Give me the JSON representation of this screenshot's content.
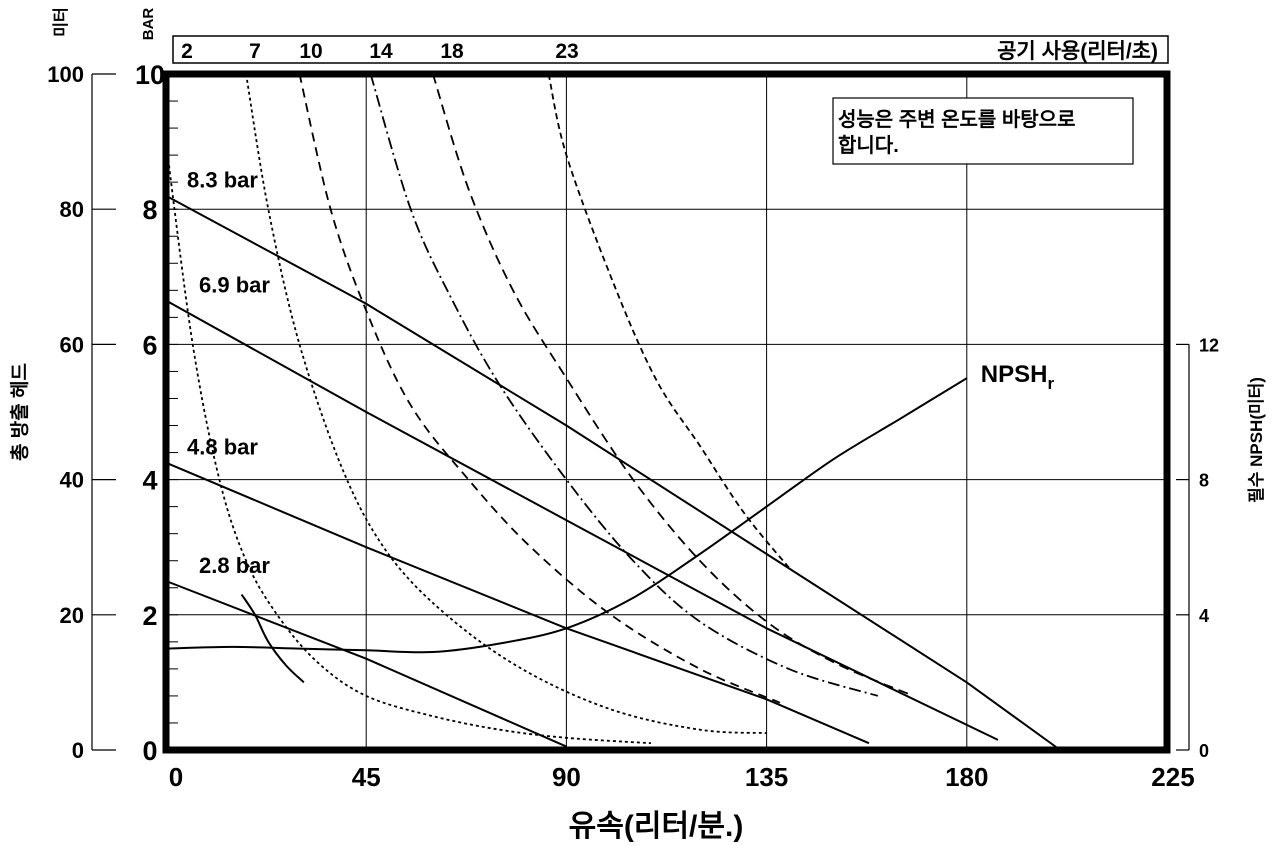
{
  "chart_data": {
    "type": "line",
    "x_axis": {
      "label": "유속(리터/분.)",
      "range": [
        0,
        225
      ],
      "ticks": [
        0,
        45,
        90,
        135,
        180,
        225
      ]
    },
    "y_axis_left_meters": {
      "unit_label": "미터",
      "label": "총 방출 헤드",
      "range": [
        0,
        100
      ],
      "ticks": [
        0,
        20,
        40,
        60,
        80,
        100
      ]
    },
    "y_axis_left_bar": {
      "unit_label": "BAR",
      "range": [
        0,
        10
      ],
      "ticks": [
        0,
        2,
        4,
        6,
        8,
        10
      ]
    },
    "y_axis_right_npsh": {
      "label": "필수 NPSH(미터)",
      "range": [
        0,
        20
      ],
      "ticks": [
        0,
        4,
        8,
        12
      ]
    },
    "air_consumption": {
      "label": "공기 사용(리터/초)",
      "values": [
        "2",
        "7",
        "10",
        "14",
        "18",
        "23"
      ]
    },
    "note": "성능은 주변 온도를 바탕으로 합니다.",
    "pressure_curves": [
      {
        "name": "8.3 bar",
        "points": [
          [
            0,
            82
          ],
          [
            45,
            66
          ],
          [
            90,
            48
          ],
          [
            135,
            29
          ],
          [
            180,
            10
          ],
          [
            201,
            0
          ]
        ]
      },
      {
        "name": "6.9 bar",
        "points": [
          [
            0,
            66.5
          ],
          [
            45,
            50
          ],
          [
            90,
            34
          ],
          [
            135,
            18
          ],
          [
            187,
            1.5
          ]
        ]
      },
      {
        "name": "4.8 bar",
        "points": [
          [
            0,
            42.5
          ],
          [
            45,
            30
          ],
          [
            90,
            18
          ],
          [
            135,
            7.5
          ],
          [
            158,
            1
          ]
        ]
      },
      {
        "name": "2.8 bar",
        "points": [
          [
            0,
            25
          ],
          [
            45,
            13.5
          ],
          [
            90,
            0.5
          ]
        ]
      }
    ],
    "air_curves": [
      {
        "name": "2",
        "dash": "3,3",
        "points": [
          [
            0,
            90
          ],
          [
            6,
            60
          ],
          [
            12,
            40
          ],
          [
            18,
            28
          ],
          [
            25,
            20
          ],
          [
            34,
            13
          ],
          [
            45,
            8
          ],
          [
            60,
            5
          ],
          [
            75,
            3
          ],
          [
            90,
            1.8
          ],
          [
            109,
            1
          ]
        ]
      },
      {
        "name": "7",
        "dash": "3,3",
        "points": [
          [
            18,
            100
          ],
          [
            23,
            80
          ],
          [
            30,
            60
          ],
          [
            40,
            41
          ],
          [
            50,
            29
          ],
          [
            63,
            20
          ],
          [
            80,
            12
          ],
          [
            100,
            6
          ],
          [
            120,
            3
          ],
          [
            135,
            2.5
          ]
        ]
      },
      {
        "name": "10",
        "dash": "9,6",
        "points": [
          [
            30,
            100
          ],
          [
            37,
            80
          ],
          [
            45,
            65
          ],
          [
            55,
            51
          ],
          [
            68,
            40
          ],
          [
            82,
            30
          ],
          [
            100,
            20
          ],
          [
            120,
            12
          ],
          [
            138,
            7
          ]
        ]
      },
      {
        "name": "14",
        "dash": "12,4,2,4",
        "points": [
          [
            46,
            100
          ],
          [
            55,
            80
          ],
          [
            64,
            67
          ],
          [
            75,
            54
          ],
          [
            90,
            40
          ],
          [
            105,
            28
          ],
          [
            120,
            19
          ],
          [
            140,
            12
          ],
          [
            160,
            8
          ]
        ]
      },
      {
        "name": "18",
        "dash": "10,6",
        "points": [
          [
            60,
            100
          ],
          [
            68,
            83
          ],
          [
            78,
            68
          ],
          [
            90,
            55
          ],
          [
            105,
            40
          ],
          [
            120,
            28
          ],
          [
            135,
            19
          ],
          [
            150,
            13
          ],
          [
            168,
            8
          ]
        ]
      },
      {
        "name": "23",
        "dash": "6,4",
        "points": [
          [
            86,
            100
          ],
          [
            90,
            88
          ],
          [
            100,
            70
          ],
          [
            110,
            55
          ],
          [
            120,
            45
          ],
          [
            130,
            35
          ],
          [
            140,
            27
          ]
        ]
      }
    ],
    "npsh_curve": {
      "name": "NPSH",
      "subscript": "r",
      "points": [
        [
          0,
          3
        ],
        [
          15,
          3.05
        ],
        [
          30,
          3
        ],
        [
          45,
          2.95
        ],
        [
          60,
          2.9
        ],
        [
          75,
          3.15
        ],
        [
          90,
          3.6
        ],
        [
          105,
          4.5
        ],
        [
          120,
          5.8
        ],
        [
          135,
          7.2
        ],
        [
          150,
          8.6
        ],
        [
          165,
          9.8
        ],
        [
          180,
          11
        ]
      ]
    },
    "suction_curve": {
      "points": [
        [
          17,
          23
        ],
        [
          20,
          20
        ],
        [
          23,
          16
        ],
        [
          27,
          12.5
        ],
        [
          31,
          10
        ]
      ]
    },
    "grid": true
  }
}
